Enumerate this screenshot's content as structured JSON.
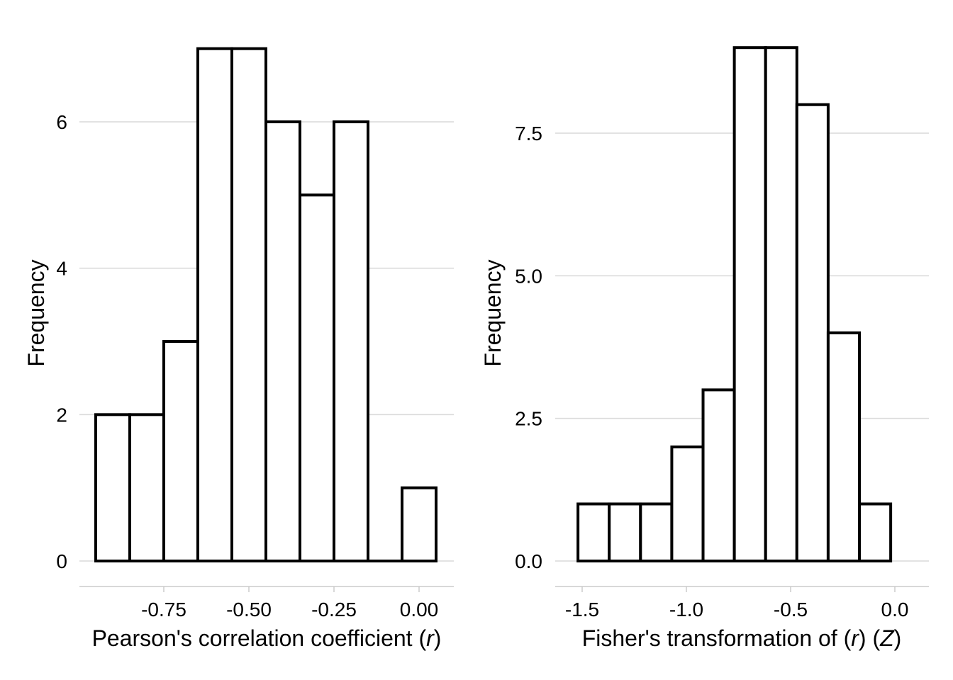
{
  "chart_data": [
    {
      "type": "bar",
      "subtype": "histogram",
      "xlabel": "Pearson's correlation coefficient",
      "xlabel_symbol": "r",
      "ylabel": "Frequency",
      "bin_width": 0.1,
      "bins": [
        {
          "x0": -0.95,
          "x1": -0.85,
          "count": 2
        },
        {
          "x0": -0.85,
          "x1": -0.75,
          "count": 2
        },
        {
          "x0": -0.75,
          "x1": -0.65,
          "count": 3
        },
        {
          "x0": -0.65,
          "x1": -0.55,
          "count": 7
        },
        {
          "x0": -0.55,
          "x1": -0.45,
          "count": 7
        },
        {
          "x0": -0.45,
          "x1": -0.35,
          "count": 6
        },
        {
          "x0": -0.35,
          "x1": -0.25,
          "count": 5
        },
        {
          "x0": -0.25,
          "x1": -0.15,
          "count": 6
        },
        {
          "x0": -0.15,
          "x1": -0.05,
          "count": 0
        },
        {
          "x0": -0.05,
          "x1": 0.05,
          "count": 1
        }
      ],
      "xlim": [
        -1.0,
        0.1
      ],
      "ylim": [
        0,
        7
      ],
      "x_ticks": [
        -0.75,
        -0.5,
        -0.25,
        0.0
      ],
      "x_tick_labels": [
        "-0.75",
        "-0.50",
        "-0.25",
        "0.00"
      ],
      "y_ticks": [
        0,
        2,
        4,
        6
      ],
      "y_tick_labels": [
        "0",
        "2",
        "4",
        "6"
      ],
      "grid": "horizontal",
      "legend": "none"
    },
    {
      "type": "bar",
      "subtype": "histogram",
      "xlabel": "Fisher's transformation of",
      "xlabel_symbol": "r",
      "xlabel_symbol2": "Z",
      "ylabel": "Frequency",
      "bin_width": 0.15,
      "bins": [
        {
          "x0": -1.52,
          "x1": -1.37,
          "count": 1
        },
        {
          "x0": -1.37,
          "x1": -1.22,
          "count": 1
        },
        {
          "x0": -1.22,
          "x1": -1.07,
          "count": 1
        },
        {
          "x0": -1.07,
          "x1": -0.92,
          "count": 2
        },
        {
          "x0": -0.92,
          "x1": -0.77,
          "count": 3
        },
        {
          "x0": -0.77,
          "x1": -0.62,
          "count": 9
        },
        {
          "x0": -0.62,
          "x1": -0.47,
          "count": 9
        },
        {
          "x0": -0.47,
          "x1": -0.32,
          "count": 8
        },
        {
          "x0": -0.32,
          "x1": -0.17,
          "count": 4
        },
        {
          "x0": -0.17,
          "x1": -0.02,
          "count": 1
        }
      ],
      "xlim": [
        -1.6,
        0.15
      ],
      "ylim": [
        0,
        9
      ],
      "x_ticks": [
        -1.5,
        -1.0,
        -0.5,
        0.0
      ],
      "x_tick_labels": [
        "-1.5",
        "-1.0",
        "-0.5",
        "0.0"
      ],
      "y_ticks": [
        0,
        2.5,
        5,
        7.5
      ],
      "y_tick_labels": [
        "0.0",
        "2.5",
        "5.0",
        "7.5"
      ],
      "grid": "horizontal",
      "legend": "none"
    }
  ],
  "colors": {
    "bar_fill": "#ffffff",
    "bar_stroke": "#000000",
    "grid": "#d9d9d9",
    "axis": "#cccccc",
    "text": "#000000"
  }
}
